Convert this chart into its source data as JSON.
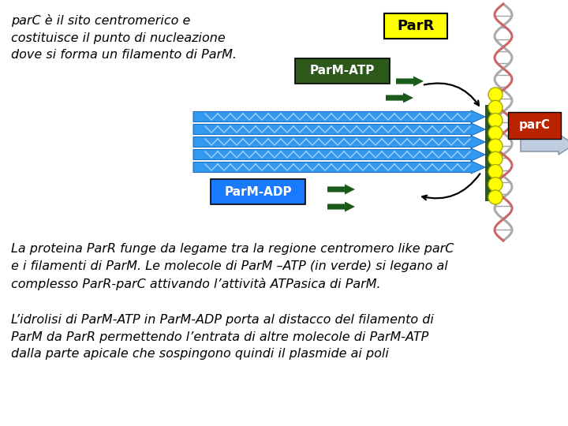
{
  "bg_color": "#ffffff",
  "text_top_left": "parC è il sito centromerico e\ncostituisce il punto di nucleazione\ndove si forma un filamento di ParM.",
  "text_bottom1": "La proteina ParR funge da legame tra la regione centromero like parC\ne i filamenti di ParM. Le molecole di ParM –ATP (in verde) si legano al\ncomplesso ParR-parC attivando l’attività ATPasica di ParM.",
  "text_bottom2": "L’idrolisi di ParM-ATP in ParM-ADP porta al distacco del filamento di\nParM da ParR permettendo l’entrata di altre molecole di ParM-ATP\ndalla parte apicale che sospingono quindi il plasmide ai poli",
  "parR_label": "ParR",
  "parR_box_color": "#ffff00",
  "parR_text_color": "#000000",
  "parM_ATP_label": "ParM-ATP",
  "parM_ATP_box_color": "#2d5a1b",
  "parM_ATP_text_color": "#ffffff",
  "parM_ADP_label": "ParM-ADP",
  "parM_ADP_box_color": "#1a7aff",
  "parM_ADP_text_color": "#ffffff",
  "parC_label": "parC",
  "parC_box_color": "#bb2200",
  "parC_text_color": "#ffffff",
  "filament_color": "#3399ee",
  "filament_dark_color": "#2d5a1b",
  "parR_ring_color": "#ffff00",
  "arrow_color": "#1a5a1a",
  "font_bottom": "sans-serif",
  "font_diagram": "sans-serif",
  "dna_strand1_color": "#aaaaaa",
  "dna_strand2_color": "#cc6666",
  "dna_rung_color": "#888888",
  "light_arrow_color": "#c0cce0",
  "light_arrow_edge": "#8899aa"
}
